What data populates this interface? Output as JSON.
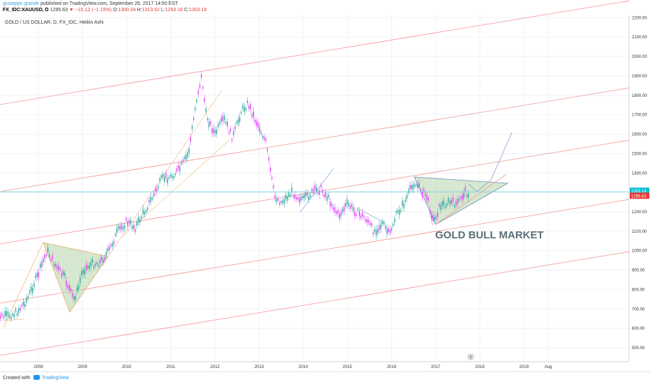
{
  "header": {
    "author": "giuseppe.grande",
    "published": "published on TradingView.com, September 26, 2017 14:50 EST",
    "symbol": "FX_IDC:XAUUSD, D",
    "price": "1295.63",
    "change": "▼ −15.12 (−1.15%)",
    "o_label": "O:",
    "o_value": "1300.34",
    "h_label": "H:",
    "h_value": "1313.62",
    "l_label": "L:",
    "l_value": "1293.18",
    "c_label": "C:",
    "c_value": "1303.18",
    "chart_title": "GOLD / US DOLLAR, D, FX_IDC, Heikin Ashi"
  },
  "chart_data": {
    "type": "line",
    "title": "GOLD / US DOLLAR, D, FX_IDC, Heikin Ashi",
    "xlabel": "",
    "ylabel": "",
    "ylim": [
      460,
      2220
    ],
    "y_ticks": [
      "500.00",
      "600.00",
      "700.00",
      "800.00",
      "900.00",
      "1000.00",
      "1100.00",
      "1200.00",
      "1300.00",
      "1400.00",
      "1500.00",
      "1600.00",
      "1700.00",
      "1800.00",
      "1900.00",
      "2000.00",
      "2100.00",
      "2200.00"
    ],
    "x_ticks": [
      "2008",
      "2009",
      "2010",
      "2011",
      "2012",
      "2013",
      "2014",
      "2015",
      "2016",
      "2017",
      "2018",
      "2019",
      "Aug"
    ],
    "series": [
      {
        "x": [
          2007.0,
          2007.25,
          2007.5,
          2007.75,
          2008.0,
          2008.2,
          2008.4,
          2008.6,
          2008.8,
          2008.9,
          2009.0,
          2009.2,
          2009.4,
          2009.6,
          2009.8,
          2010.0,
          2010.2,
          2010.4,
          2010.6,
          2010.8,
          2011.0,
          2011.2,
          2011.4,
          2011.6,
          2011.7,
          2011.8,
          2012.0,
          2012.2,
          2012.4,
          2012.6,
          2012.75,
          2012.9,
          2013.0,
          2013.15,
          2013.25,
          2013.35,
          2013.5,
          2013.75,
          2014.0,
          2014.2,
          2014.4,
          2014.6,
          2014.8,
          2015.0,
          2015.2,
          2015.4,
          2015.6,
          2015.8,
          2015.95,
          2016.1,
          2016.3,
          2016.5,
          2016.6,
          2016.8,
          2016.95,
          2017.1,
          2017.3,
          2017.5,
          2017.65,
          2017.75
        ],
        "values": [
          670,
          660,
          680,
          750,
          880,
          1000,
          920,
          860,
          750,
          800,
          900,
          930,
          940,
          1000,
          1100,
          1150,
          1120,
          1200,
          1280,
          1370,
          1380,
          1420,
          1500,
          1800,
          1900,
          1700,
          1600,
          1680,
          1580,
          1720,
          1760,
          1680,
          1640,
          1560,
          1420,
          1280,
          1250,
          1300,
          1260,
          1300,
          1320,
          1260,
          1180,
          1240,
          1200,
          1170,
          1100,
          1140,
          1080,
          1180,
          1250,
          1350,
          1330,
          1280,
          1150,
          1230,
          1250,
          1240,
          1300,
          1295
        ]
      }
    ],
    "price_labels": [
      "1303.18",
      "1295.63"
    ],
    "annotation": "GOLD BULL MARKET",
    "colors": {
      "up": "#26a69a",
      "down": "#e040fb",
      "channel": "#f08080",
      "hline": "#00bcd4",
      "triangle": "#b5d6a7",
      "label_red": "#e53935",
      "label_cyan": "#00bcd4"
    }
  },
  "footer": {
    "created_with": "Created with",
    "brand": "TradingView"
  },
  "badge": {
    "count": "6"
  }
}
